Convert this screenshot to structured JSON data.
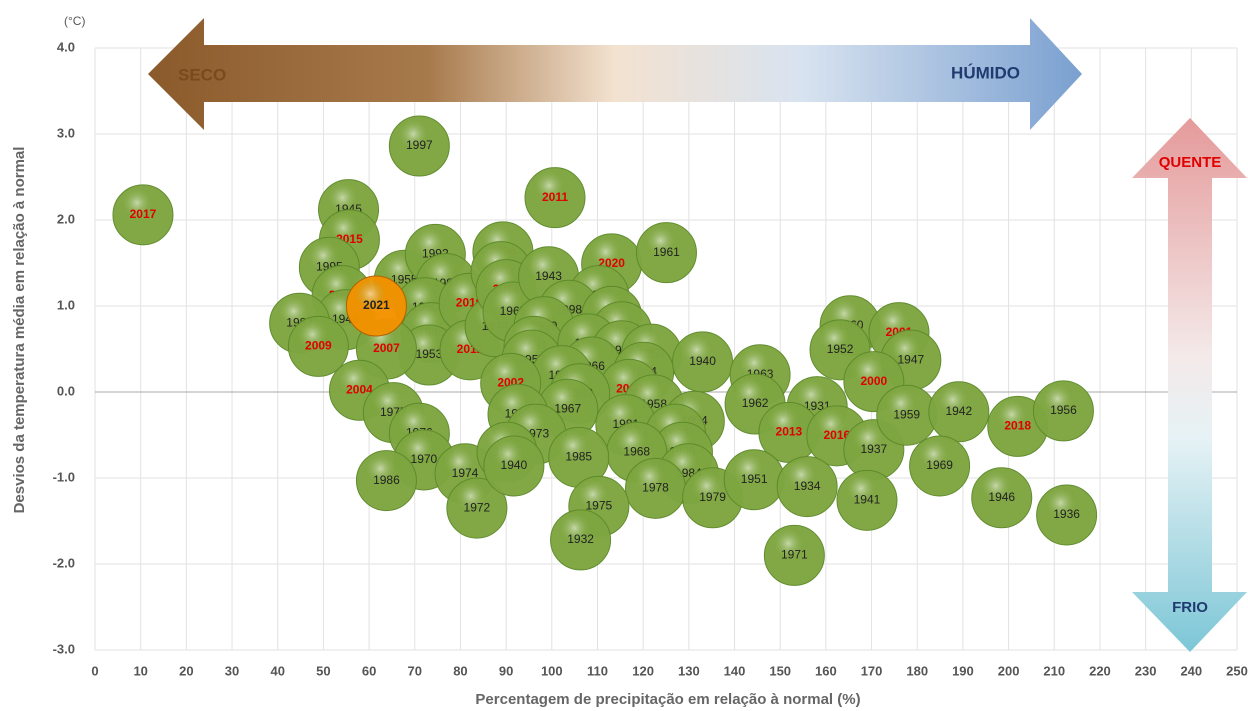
{
  "chart_data": {
    "type": "bubble",
    "y_unit": "(°C)",
    "x_label": "Percentagem de precipitação em relação à normal (%)",
    "y_label": "Desvios da temperatura média em relação à normal",
    "annotations": {
      "dry": "SECO",
      "wet": "HÚMIDO",
      "hot": "QUENTE",
      "cold": "FRIO"
    },
    "xlim": [
      0,
      250
    ],
    "xticks": [
      0,
      10,
      20,
      30,
      40,
      50,
      60,
      70,
      80,
      90,
      100,
      110,
      120,
      130,
      140,
      150,
      160,
      170,
      180,
      190,
      200,
      210,
      220,
      230,
      240,
      250
    ],
    "ylim": [
      -3,
      4
    ],
    "yticks": [
      {
        "value": -3,
        "label": "-3.0"
      },
      {
        "value": -2,
        "label": "-2.0"
      },
      {
        "value": -1,
        "label": "-1.0"
      },
      {
        "value": 0,
        "label": "0.0"
      },
      {
        "value": 1,
        "label": "1.0"
      },
      {
        "value": 2,
        "label": "2.0"
      },
      {
        "value": 3,
        "label": "3.0"
      },
      {
        "value": 4,
        "label": "4.0"
      }
    ],
    "grid": true,
    "bubble_color": "#7ea640",
    "label_color": "#333333",
    "highlight_label_color": "#e00000",
    "current_color": "#f39200",
    "points": [
      {
        "label": "2017",
        "x": 10.5,
        "y": 2.06,
        "highlight": true
      },
      {
        "label": "1997",
        "x": 71,
        "y": 2.86
      },
      {
        "label": "1945",
        "x": 55.5,
        "y": 2.12
      },
      {
        "label": "2015",
        "x": 55.7,
        "y": 1.77,
        "highlight": true
      },
      {
        "label": "1995",
        "x": 51.3,
        "y": 1.45
      },
      {
        "label": "2005",
        "x": 54.1,
        "y": 1.12,
        "highlight": true
      },
      {
        "label": "1949",
        "x": 54.8,
        "y": 0.84
      },
      {
        "label": "1982",
        "x": 44.8,
        "y": 0.8
      },
      {
        "label": "2009",
        "x": 48.9,
        "y": 0.53,
        "highlight": true
      },
      {
        "label": "1955",
        "x": 67.7,
        "y": 1.3
      },
      {
        "label": "1992",
        "x": 74.5,
        "y": 1.6
      },
      {
        "label": "1987",
        "x": 76.9,
        "y": 1.26
      },
      {
        "label": "1990",
        "x": 72.3,
        "y": 0.98
      },
      {
        "label": "1938",
        "x": 73.6,
        "y": 0.69
      },
      {
        "label": "1953",
        "x": 73.1,
        "y": 0.43
      },
      {
        "label": "2007",
        "x": 63.8,
        "y": 0.5,
        "highlight": true
      },
      {
        "label": "2004",
        "x": 57.9,
        "y": 0.02,
        "highlight": true
      },
      {
        "label": "1977",
        "x": 65.3,
        "y": -0.24
      },
      {
        "label": "1976",
        "x": 71,
        "y": -0.48
      },
      {
        "label": "1970",
        "x": 72,
        "y": -0.79
      },
      {
        "label": "1986",
        "x": 63.8,
        "y": -1.03
      },
      {
        "label": "1974",
        "x": 81,
        "y": -0.95
      },
      {
        "label": "1972",
        "x": 83.6,
        "y": -1.35
      },
      {
        "label": "2019",
        "x": 81.9,
        "y": 1.03,
        "highlight": true
      },
      {
        "label": "2012",
        "x": 82.1,
        "y": 0.49,
        "highlight": true
      },
      {
        "label": "1944",
        "x": 87.6,
        "y": 0.76
      },
      {
        "label": "2006",
        "x": 89.3,
        "y": 1.63,
        "highlight": true
      },
      {
        "label": "2003",
        "x": 88.9,
        "y": 1.4,
        "highlight": true
      },
      {
        "label": "2014",
        "x": 90,
        "y": 1.19,
        "highlight": true
      },
      {
        "label": "1965",
        "x": 91.5,
        "y": 0.93
      },
      {
        "label": "1943",
        "x": 99.3,
        "y": 1.34
      },
      {
        "label": "2011",
        "x": 100.7,
        "y": 2.26,
        "highlight": true
      },
      {
        "label": "2020",
        "x": 113.1,
        "y": 1.49,
        "highlight": true
      },
      {
        "label": "1961",
        "x": 125.1,
        "y": 1.62
      },
      {
        "label": "1933",
        "x": 110.3,
        "y": 1.12
      },
      {
        "label": "1998",
        "x": 103.7,
        "y": 0.95
      },
      {
        "label": "2010",
        "x": 113.1,
        "y": 0.88,
        "highlight": true
      },
      {
        "label": "1999",
        "x": 98.3,
        "y": 0.76
      },
      {
        "label": "1948",
        "x": 115.3,
        "y": 0.7
      },
      {
        "label": "1991",
        "x": 96.1,
        "y": 0.53
      },
      {
        "label": "1989",
        "x": 107.9,
        "y": 0.56
      },
      {
        "label": "1996",
        "x": 115.3,
        "y": 0.48
      },
      {
        "label": "1950",
        "x": 121.8,
        "y": 0.44
      },
      {
        "label": "1957",
        "x": 95.6,
        "y": 0.37
      },
      {
        "label": "1966",
        "x": 108.7,
        "y": 0.29
      },
      {
        "label": "1994",
        "x": 102.2,
        "y": 0.19
      },
      {
        "label": "1964",
        "x": 120.1,
        "y": 0.23
      },
      {
        "label": "1940",
        "x": 133,
        "y": 0.35
      },
      {
        "label": "2002",
        "x": 91,
        "y": 0.1,
        "highlight": true
      },
      {
        "label": "2008",
        "x": 117,
        "y": 0.03,
        "highlight": true
      },
      {
        "label": "1980",
        "x": 106.1,
        "y": -0.02
      },
      {
        "label": "1967",
        "x": 103.5,
        "y": -0.2
      },
      {
        "label": "1958",
        "x": 122.3,
        "y": -0.15
      },
      {
        "label": "1988",
        "x": 92.6,
        "y": -0.26
      },
      {
        "label": "1954",
        "x": 131.2,
        "y": -0.34
      },
      {
        "label": "1981",
        "x": 116.2,
        "y": -0.38
      },
      {
        "label": "1973",
        "x": 96.5,
        "y": -0.49
      },
      {
        "label": "1983",
        "x": 127.1,
        "y": -0.49
      },
      {
        "label": "1993",
        "x": 128.6,
        "y": -0.7
      },
      {
        "label": "1968",
        "x": 118.6,
        "y": -0.7
      },
      {
        "label": "1935",
        "x": 90.2,
        "y": -0.7
      },
      {
        "label": "1940",
        "x": 91.7,
        "y": -0.86
      },
      {
        "label": "1985",
        "x": 105.9,
        "y": -0.76
      },
      {
        "label": "1984",
        "x": 129.9,
        "y": -0.95
      },
      {
        "label": "1978",
        "x": 122.7,
        "y": -1.12
      },
      {
        "label": "1979",
        "x": 135.2,
        "y": -1.23
      },
      {
        "label": "1975",
        "x": 110.3,
        "y": -1.33
      },
      {
        "label": "1932",
        "x": 106.3,
        "y": -1.72
      },
      {
        "label": "1963",
        "x": 145.6,
        "y": 0.2
      },
      {
        "label": "1962",
        "x": 144.5,
        "y": -0.14
      },
      {
        "label": "1931",
        "x": 158.1,
        "y": -0.17
      },
      {
        "label": "2013",
        "x": 151.9,
        "y": -0.47,
        "highlight": true
      },
      {
        "label": "2016",
        "x": 162.4,
        "y": -0.51,
        "highlight": true
      },
      {
        "label": "1937",
        "x": 170.5,
        "y": -0.67
      },
      {
        "label": "1951",
        "x": 144.3,
        "y": -1.02
      },
      {
        "label": "1934",
        "x": 155.9,
        "y": -1.1
      },
      {
        "label": "1971",
        "x": 153.1,
        "y": -1.9
      },
      {
        "label": "1960",
        "x": 165.3,
        "y": 0.77
      },
      {
        "label": "2001",
        "x": 176,
        "y": 0.69,
        "highlight": true
      },
      {
        "label": "1952",
        "x": 163.1,
        "y": 0.49
      },
      {
        "label": "1947",
        "x": 178.6,
        "y": 0.37
      },
      {
        "label": "2000",
        "x": 170.5,
        "y": 0.12,
        "highlight": true
      },
      {
        "label": "1959",
        "x": 177.7,
        "y": -0.27
      },
      {
        "label": "1942",
        "x": 189.1,
        "y": -0.23
      },
      {
        "label": "1941",
        "x": 169,
        "y": -1.26
      },
      {
        "label": "1969",
        "x": 184.9,
        "y": -0.86
      },
      {
        "label": "2018",
        "x": 202,
        "y": -0.4,
        "highlight": true
      },
      {
        "label": "1956",
        "x": 212,
        "y": -0.22
      },
      {
        "label": "1946",
        "x": 198.5,
        "y": -1.23
      },
      {
        "label": "1936",
        "x": 212.7,
        "y": -1.43
      },
      {
        "label": "2021",
        "x": 61.6,
        "y": 1.0,
        "current": true
      }
    ]
  }
}
